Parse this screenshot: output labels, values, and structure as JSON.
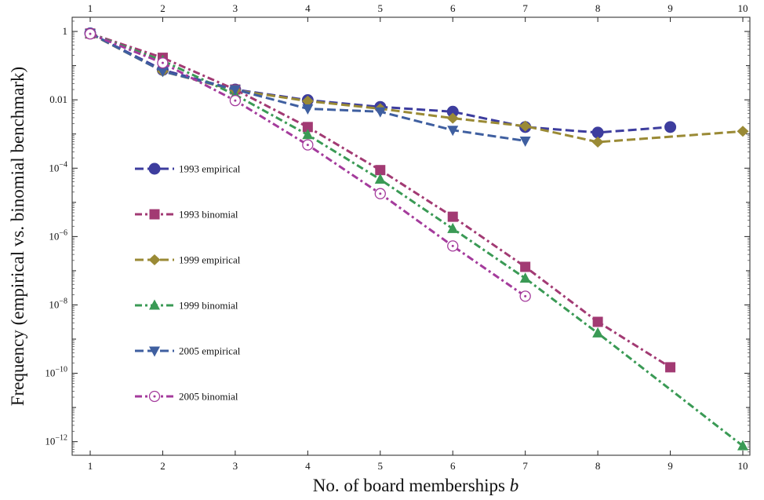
{
  "chart_data": {
    "type": "line",
    "xlabel": "No. of board memberships ",
    "xlabel_var": "b",
    "ylabel": "Frequency (empirical vs. binomial benchmark)",
    "x_ticks": [
      1,
      2,
      3,
      4,
      5,
      6,
      7,
      8,
      9,
      10
    ],
    "y_scale": "log",
    "y_ticks": [
      {
        "value": 1,
        "base": "1",
        "exp": ""
      },
      {
        "value": 0.01,
        "base": "0.01",
        "exp": ""
      },
      {
        "value": 0.0001,
        "base": "10",
        "exp": "−4"
      },
      {
        "value": 1e-06,
        "base": "10",
        "exp": "−6"
      },
      {
        "value": 1e-08,
        "base": "10",
        "exp": "−8"
      },
      {
        "value": 1e-10,
        "base": "10",
        "exp": "−10"
      },
      {
        "value": 1e-12,
        "base": "10",
        "exp": "−12"
      }
    ],
    "xlim": [
      0.75,
      10.0
    ],
    "ylim": [
      4e-13,
      2.6
    ],
    "grid": false,
    "legend_position": "left",
    "series": [
      {
        "name": "1993 empirical",
        "color": "#3d3d9e",
        "dash": "11,5",
        "marker": "circle",
        "x": [
          1,
          2,
          3,
          4,
          5,
          6,
          7,
          8,
          9
        ],
        "y": [
          0.88,
          0.075,
          0.02,
          0.0098,
          0.0062,
          0.0045,
          0.0016,
          0.0011,
          0.0016
        ]
      },
      {
        "name": "1993 binomial",
        "color": "#a23a73",
        "dash": "9,4,3,4",
        "marker": "square",
        "x": [
          1,
          2,
          3,
          4,
          5,
          6,
          7,
          8,
          9
        ],
        "y": [
          0.87,
          0.17,
          0.02,
          0.0016,
          8.8e-05,
          3.8e-06,
          1.3e-07,
          3.2e-09,
          1.5e-10
        ]
      },
      {
        "name": "1999 empirical",
        "color": "#9a8a35",
        "dash": "11,5",
        "marker": "diamond",
        "x": [
          1,
          2,
          3,
          4,
          5,
          6,
          7,
          8,
          10
        ],
        "y": [
          0.86,
          0.068,
          0.019,
          0.0092,
          0.0055,
          0.0029,
          0.0017,
          0.00058,
          0.0012
        ]
      },
      {
        "name": "1999 binomial",
        "color": "#3a9a55",
        "dash": "9,4,3,4",
        "marker": "triangle-up",
        "x": [
          1,
          2,
          3,
          4,
          5,
          6,
          7,
          8,
          10
        ],
        "y": [
          0.86,
          0.14,
          0.014,
          0.00095,
          4.7e-05,
          1.7e-06,
          6e-08,
          1.5e-09,
          7.5e-13
        ]
      },
      {
        "name": "2005 empirical",
        "color": "#3f5fa0",
        "dash": "11,5",
        "marker": "triangle-down",
        "x": [
          1,
          2,
          3,
          4,
          5,
          6,
          7
        ],
        "y": [
          0.88,
          0.068,
          0.02,
          0.0055,
          0.0045,
          0.0013,
          0.00063
        ]
      },
      {
        "name": "2005 binomial",
        "color": "#a43b9c",
        "dash": "9,4,3,4",
        "marker": "circle-open",
        "x": [
          1,
          2,
          3,
          4,
          5,
          6,
          7
        ],
        "y": [
          0.85,
          0.12,
          0.0095,
          0.00048,
          1.8e-05,
          5.3e-07,
          1.8e-08
        ]
      }
    ]
  }
}
